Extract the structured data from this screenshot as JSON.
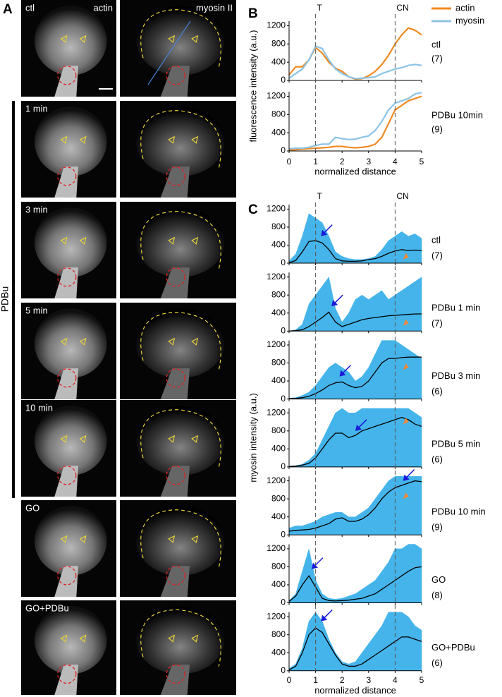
{
  "panel_a": {
    "letter": "A",
    "columns": [
      "actin",
      "myosin II"
    ],
    "group_label": "PDBu",
    "rows": [
      {
        "label": "ctl"
      },
      {
        "label": "1 min"
      },
      {
        "label": "3 min"
      },
      {
        "label": "5 min"
      },
      {
        "label": "10 min"
      },
      {
        "label": "GO"
      },
      {
        "label": "GO+PDBu"
      }
    ]
  },
  "chart_data": [
    {
      "type": "line",
      "letter": "B",
      "ylabel": "fluorescence intensity (a.u.)",
      "xlabel": "normalized distance",
      "xlim": [
        0,
        5
      ],
      "xticks": [
        0,
        1,
        2,
        3,
        4,
        5
      ],
      "x": [
        0,
        0.25,
        0.5,
        0.75,
        1,
        1.25,
        1.5,
        1.75,
        2,
        2.25,
        2.5,
        2.75,
        3,
        3.25,
        3.5,
        3.75,
        4,
        4.25,
        4.5,
        4.75,
        5
      ],
      "vlines": [
        {
          "x": 1,
          "label": "T"
        },
        {
          "x": 4,
          "label": "CN"
        }
      ],
      "subplots": [
        {
          "label": "ctl",
          "count": "(7)",
          "ylim": [
            0,
            1300
          ],
          "yticks": [
            0,
            400,
            800,
            1200
          ],
          "series": [
            {
              "name": "actin",
              "color": "#ef8a22",
              "values": [
                120,
                300,
                300,
                450,
                720,
                600,
                400,
                270,
                200,
                80,
                30,
                40,
                100,
                200,
                350,
                550,
                800,
                1000,
                1150,
                1100,
                1000
              ]
            },
            {
              "name": "myosin",
              "color": "#8cc3e6",
              "values": [
                50,
                150,
                250,
                450,
                750,
                700,
                450,
                250,
                150,
                80,
                40,
                50,
                60,
                80,
                150,
                200,
                250,
                280,
                330,
                350,
                330
              ]
            }
          ]
        },
        {
          "label": "PDBu 10min",
          "count": "(9)",
          "ylim": [
            0,
            1300
          ],
          "yticks": [
            0,
            400,
            800,
            1200
          ],
          "series": [
            {
              "color": "#ef8a22",
              "values": [
                20,
                30,
                40,
                50,
                60,
                70,
                80,
                100,
                100,
                80,
                70,
                80,
                100,
                150,
                300,
                600,
                900,
                1000,
                1100,
                1150,
                1200
              ]
            },
            {
              "color": "#8cc3e6",
              "values": [
                50,
                60,
                60,
                80,
                120,
                150,
                150,
                300,
                270,
                250,
                260,
                300,
                330,
                450,
                650,
                900,
                1050,
                1100,
                1150,
                1250,
                1280
              ]
            }
          ]
        }
      ]
    },
    {
      "type": "band-line",
      "letter": "C",
      "ylabel": "myosin intensity (a.u.)",
      "xlabel": "normalized distance",
      "xlim": [
        0,
        5
      ],
      "xticks": [
        0,
        1,
        2,
        3,
        4,
        5
      ],
      "x": [
        0,
        0.25,
        0.5,
        0.75,
        1,
        1.25,
        1.5,
        1.75,
        2,
        2.25,
        2.5,
        2.75,
        3,
        3.25,
        3.5,
        3.75,
        4,
        4.25,
        4.5,
        4.75,
        5
      ],
      "vlines": [
        {
          "x": 1,
          "label": "T"
        },
        {
          "x": 4,
          "label": "CN"
        }
      ],
      "subplots": [
        {
          "label": "ctl",
          "count": "(7)",
          "ylim": [
            0,
            1300
          ],
          "yticks": [
            0,
            400,
            800,
            1200
          ],
          "series": [
            {
              "style": "area",
              "color": "#45b4ea",
              "values": [
                50,
                200,
                600,
                1100,
                1000,
                900,
                600,
                250,
                150,
                100,
                80,
                80,
                100,
                150,
                300,
                500,
                600,
                700,
                600,
                650,
                550
              ]
            },
            {
              "style": "line",
              "color": "#000000",
              "values": [
                10,
                60,
                250,
                480,
                500,
                450,
                300,
                100,
                50,
                40,
                40,
                50,
                80,
                100,
                150,
                220,
                270,
                300,
                280,
                290,
                280
              ]
            }
          ],
          "markers": [
            {
              "x": 1.2,
              "y": 600,
              "color": "#1a1adb"
            },
            {
              "x": 4.3,
              "y": 80,
              "color": "#f0883a"
            }
          ]
        },
        {
          "label": "PDBu 1 min",
          "count": "(7)",
          "ylim": [
            0,
            1300
          ],
          "yticks": [
            0,
            400,
            800,
            1200
          ],
          "series": [
            {
              "style": "area",
              "color": "#45b4ea",
              "values": [
                0,
                30,
                150,
                600,
                800,
                1000,
                1200,
                500,
                200,
                400,
                700,
                800,
                700,
                800,
                900,
                700,
                800,
                900,
                1000,
                1100,
                1200
              ]
            },
            {
              "style": "line",
              "color": "#000000",
              "values": [
                0,
                10,
                30,
                100,
                200,
                300,
                420,
                200,
                100,
                150,
                200,
                250,
                280,
                300,
                320,
                340,
                350,
                360,
                370,
                380,
                380
              ]
            }
          ],
          "markers": [
            {
              "x": 1.6,
              "y": 550,
              "color": "#1a1adb"
            },
            {
              "x": 4.3,
              "y": 120,
              "color": "#f0883a"
            }
          ]
        },
        {
          "label": "PDBu 3 min",
          "count": "(6)",
          "ylim": [
            0,
            1300
          ],
          "yticks": [
            0,
            400,
            800,
            1200
          ],
          "series": [
            {
              "style": "area",
              "color": "#45b4ea",
              "values": [
                20,
                30,
                80,
                150,
                300,
                500,
                700,
                800,
                700,
                600,
                400,
                500,
                700,
                1000,
                1300,
                1300,
                1300,
                1200,
                1100,
                1000,
                900
              ]
            },
            {
              "style": "line",
              "color": "#000000",
              "values": [
                10,
                15,
                30,
                60,
                120,
                200,
                300,
                360,
                380,
                300,
                250,
                280,
                400,
                600,
                800,
                900,
                900,
                920,
                930,
                930,
                930
              ]
            }
          ],
          "markers": [
            {
              "x": 1.9,
              "y": 500,
              "color": "#1a1adb"
            },
            {
              "x": 4.3,
              "y": 650,
              "color": "#f0883a"
            }
          ]
        },
        {
          "label": "PDBu 5 min",
          "count": "(6)",
          "ylim": [
            0,
            1300
          ],
          "yticks": [
            0,
            400,
            800,
            1200
          ],
          "series": [
            {
              "style": "area",
              "color": "#45b4ea",
              "values": [
                20,
                30,
                60,
                150,
                300,
                600,
                900,
                1200,
                1300,
                1200,
                1200,
                1300,
                1300,
                1300,
                1300,
                1300,
                1300,
                1300,
                1300,
                1200,
                1100
              ]
            },
            {
              "style": "line",
              "color": "#000000",
              "values": [
                10,
                20,
                40,
                80,
                200,
                400,
                600,
                750,
                750,
                650,
                700,
                800,
                850,
                900,
                950,
                1000,
                1050,
                1100,
                1050,
                950,
                900
              ]
            }
          ],
          "markers": [
            {
              "x": 2.5,
              "y": 800,
              "color": "#1a1adb"
            },
            {
              "x": 4.3,
              "y": 950,
              "color": "#f0883a"
            }
          ]
        },
        {
          "label": "PDBu 10 min",
          "count": "(9)",
          "ylim": [
            0,
            1300
          ],
          "yticks": [
            0,
            400,
            800,
            1200
          ],
          "series": [
            {
              "style": "area",
              "color": "#45b4ea",
              "values": [
                150,
                200,
                200,
                250,
                300,
                400,
                450,
                500,
                500,
                400,
                400,
                500,
                600,
                800,
                1000,
                1200,
                1300,
                1300,
                1300,
                1300,
                1300
              ]
            },
            {
              "style": "line",
              "color": "#000000",
              "values": [
                80,
                100,
                110,
                120,
                150,
                200,
                250,
                350,
                380,
                300,
                300,
                350,
                450,
                600,
                800,
                950,
                1050,
                1100,
                1150,
                1200,
                1180
              ]
            }
          ],
          "markers": [
            {
              "x": 4.3,
              "y": 1200,
              "color": "#1a1adb"
            },
            {
              "x": 4.3,
              "y": 800,
              "color": "#f0883a"
            }
          ]
        },
        {
          "label": "GO",
          "count": "(8)",
          "ylim": [
            0,
            1300
          ],
          "yticks": [
            0,
            400,
            800,
            1200
          ],
          "series": [
            {
              "style": "area",
              "color": "#45b4ea",
              "values": [
                50,
                200,
                700,
                1200,
                500,
                200,
                100,
                80,
                100,
                150,
                200,
                300,
                400,
                500,
                700,
                900,
                1200,
                1200,
                1300,
                1300,
                1200
              ]
            },
            {
              "style": "line",
              "color": "#000000",
              "values": [
                30,
                150,
                400,
                600,
                350,
                100,
                50,
                40,
                50,
                60,
                80,
                100,
                150,
                200,
                300,
                400,
                500,
                600,
                700,
                780,
                800
              ]
            }
          ],
          "markers": [
            {
              "x": 0.85,
              "y": 750,
              "color": "#1a1adb"
            }
          ]
        },
        {
          "label": "GO+PDBu",
          "count": "(6)",
          "ylim": [
            0,
            1300
          ],
          "yticks": [
            0,
            400,
            800,
            1200
          ],
          "series": [
            {
              "style": "area",
              "color": "#45b4ea",
              "values": [
                50,
                150,
                500,
                1100,
                1300,
                1100,
                700,
                400,
                200,
                150,
                200,
                400,
                600,
                800,
                1000,
                1300,
                1300,
                1300,
                1200,
                1000,
                900
              ]
            },
            {
              "style": "line",
              "color": "#000000",
              "values": [
                20,
                100,
                400,
                800,
                950,
                850,
                600,
                350,
                150,
                100,
                100,
                150,
                250,
                350,
                450,
                550,
                650,
                750,
                750,
                700,
                650
              ]
            }
          ],
          "markers": [
            {
              "x": 1.2,
              "y": 1100,
              "color": "#1a1adb"
            }
          ]
        }
      ]
    }
  ]
}
